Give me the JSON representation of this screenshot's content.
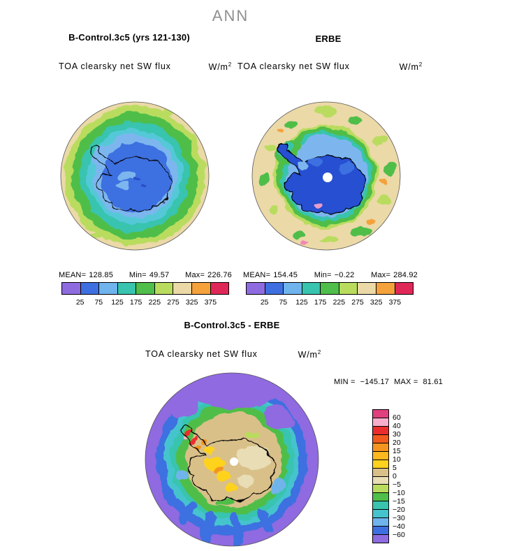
{
  "header": {
    "season": "ANN"
  },
  "panels": {
    "model": {
      "title": "B-Control.3c5 (yrs 121-130)",
      "subtitle": "TOA clearsky net SW flux",
      "units_base": "W/m",
      "units_exp": "2",
      "stats": {
        "mean_label": "MEAN=",
        "mean": "128.85",
        "min_label": "Min=",
        "min": "49.57",
        "max_label": "Max=",
        "max": "226.76"
      }
    },
    "erbe": {
      "title": "ERBE",
      "subtitle": "TOA clearsky net SW flux",
      "units_base": "W/m",
      "units_exp": "2",
      "stats": {
        "mean_label": "MEAN=",
        "mean": "154.45",
        "min_label": "Min=",
        "min": "−0.22",
        "max_label": "Max=",
        "max": "284.92"
      }
    }
  },
  "shared_colorbar": {
    "colors": [
      "#8F6BE0",
      "#3E6FE0",
      "#6FB4EC",
      "#38C4AE",
      "#4FBE4A",
      "#B9DC5E",
      "#EBD9A7",
      "#F5A13C",
      "#E02858"
    ],
    "ticks": [
      "25",
      "75",
      "125",
      "175",
      "225",
      "275",
      "325",
      "375"
    ]
  },
  "diff": {
    "title": "B-Control.3c5 - ERBE",
    "subtitle": "TOA clearsky net SW flux",
    "units_base": "W/m",
    "units_exp": "2",
    "min_label": "MIN =",
    "min": "−145.17",
    "max_label": "MAX =",
    "max": "81.61",
    "colorbar": {
      "colors": [
        "#E0407E",
        "#F7AECB",
        "#EB2D2D",
        "#F25B1E",
        "#F5941E",
        "#FDB81E",
        "#FFD21E",
        "#D9C089",
        "#E9DDB6",
        "#B9DC5E",
        "#4FBE4A",
        "#38C4AE",
        "#45C4CE",
        "#6FB4EC",
        "#3E6FE0",
        "#8F6BE0"
      ],
      "ticks": [
        "60",
        "40",
        "30",
        "20",
        "15",
        "10",
        "5",
        "0",
        "−5",
        "−10",
        "−15",
        "−20",
        "−30",
        "−40",
        "−60"
      ]
    }
  },
  "chart_data": [
    {
      "type": "heatmap",
      "title": "B-Control.3c5 (yrs 121-130)",
      "season": "ANN",
      "variable": "TOA clearsky net SW flux",
      "units": "W/m2",
      "projection": "south polar stereographic (Antarctica)",
      "stats": {
        "mean": 128.85,
        "min": 49.57,
        "max": 226.76
      },
      "contour_levels": [
        25,
        75,
        125,
        175,
        225,
        275,
        325,
        375
      ],
      "palette": [
        "#8F6BE0",
        "#3E6FE0",
        "#6FB4EC",
        "#38C4AE",
        "#4FBE4A",
        "#B9DC5E",
        "#EBD9A7",
        "#F5A13C",
        "#E02858"
      ],
      "legend_position": "below",
      "notes": "Low flux (blue) over Antarctic interior increasing outward to tan at map edge"
    },
    {
      "type": "heatmap",
      "title": "ERBE",
      "season": "ANN",
      "variable": "TOA clearsky net SW flux",
      "units": "W/m2",
      "projection": "south polar stereographic (Antarctica)",
      "stats": {
        "mean": 154.45,
        "min": -0.22,
        "max": 284.92
      },
      "contour_levels": [
        25,
        75,
        125,
        175,
        225,
        275,
        325,
        375
      ],
      "palette": [
        "#8F6BE0",
        "#3E6FE0",
        "#6FB4EC",
        "#38C4AE",
        "#4FBE4A",
        "#B9DC5E",
        "#EBD9A7",
        "#F5A13C",
        "#E02858"
      ],
      "legend_position": "below",
      "notes": "Deep blue continent, narrow green coastal band, tan ocean with scattered green patches, white missing-data dot at pole"
    },
    {
      "type": "heatmap",
      "title": "B-Control.3c5 - ERBE",
      "season": "ANN",
      "variable": "TOA clearsky net SW flux difference",
      "units": "W/m2",
      "projection": "south polar stereographic (Antarctica)",
      "stats": {
        "min": -145.17,
        "max": 81.61
      },
      "contour_levels": [
        -60,
        -40,
        -30,
        -20,
        -15,
        -10,
        -5,
        0,
        5,
        10,
        15,
        20,
        30,
        40,
        60
      ],
      "palette": [
        "#E0407E",
        "#F7AECB",
        "#EB2D2D",
        "#F25B1E",
        "#F5941E",
        "#FDB81E",
        "#FFD21E",
        "#D9C089",
        "#E9DDB6",
        "#B9DC5E",
        "#4FBE4A",
        "#38C4AE",
        "#45C4CE",
        "#6FB4EC",
        "#3E6FE0",
        "#8F6BE0"
      ],
      "legend_position": "right",
      "notes": "Strong negative (purple/blue) ring over Southern Ocean, weak positive (tan/yellow) over continent interior, small strong-positive red streaks near Antarctic Peninsula"
    }
  ]
}
